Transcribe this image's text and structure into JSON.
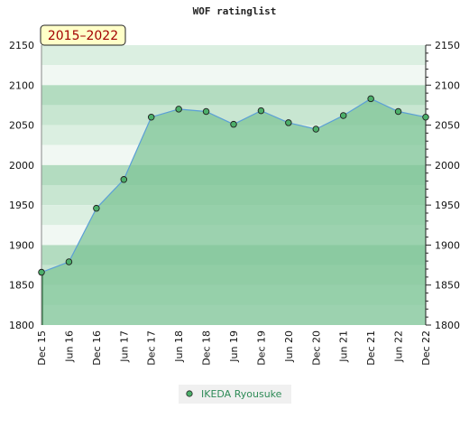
{
  "chart_data": {
    "type": "area",
    "title": "WOF ratinglist",
    "period_badge": "2015–2022",
    "x": [
      "Dec 15",
      "Jun 16",
      "Dec 16",
      "Jun 17",
      "Dec 17",
      "Jun 18",
      "Dec 18",
      "Jun 19",
      "Dec 19",
      "Jun 20",
      "Dec 20",
      "Jun 21",
      "Dec 21",
      "Jun 22",
      "Dec 22"
    ],
    "series": [
      {
        "name": "IKEDA Ryousuke",
        "values": [
          1866,
          1879,
          1946,
          1982,
          2060,
          2070,
          2067,
          2051,
          2068,
          2053,
          2045,
          2062,
          2083,
          2067,
          2060
        ]
      }
    ],
    "ylim": [
      1800,
      2150
    ],
    "yticks": [
      1800,
      1850,
      1900,
      1950,
      2000,
      2050,
      2100,
      2150
    ],
    "xlabel": "",
    "ylabel": "",
    "grid": true,
    "legend": "bottom-center",
    "colors": {
      "fill": "#7cc494",
      "line": "#5b9fd6",
      "marker": "#4caf6a",
      "badge_bg": "#ffffc8",
      "band_dark": "#b3dcc0",
      "band_mid": "#c8e6d1",
      "band_light": "#dbefe1",
      "band_white": "#f1f8f3"
    }
  }
}
